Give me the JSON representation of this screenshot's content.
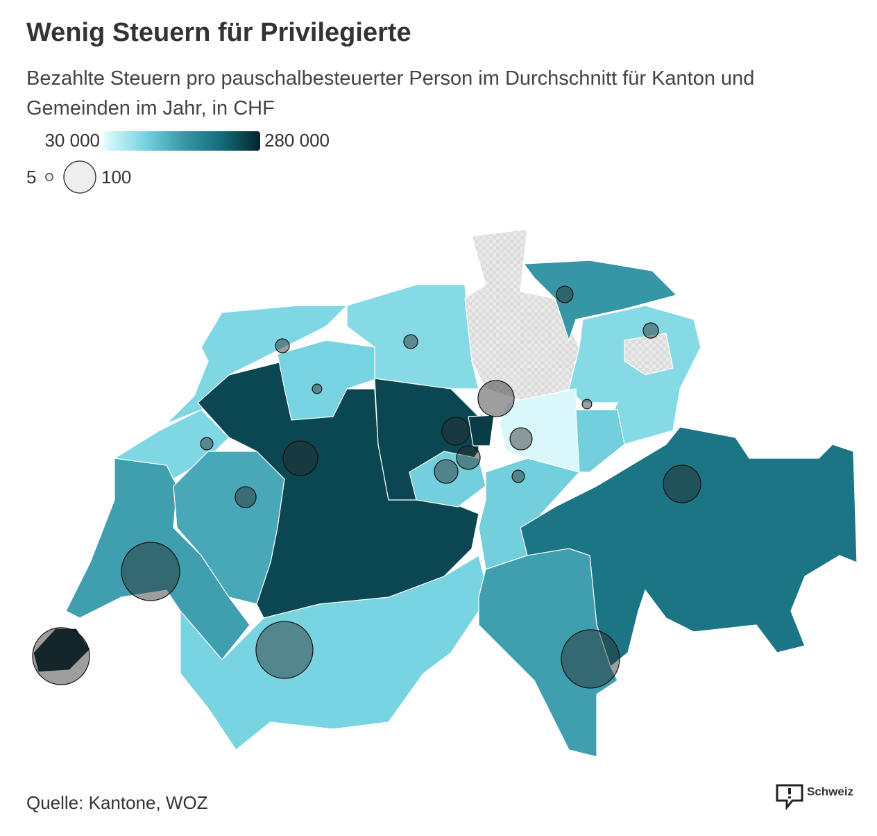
{
  "title": "Wenig Steuern für Privilegierte",
  "subtitle": "Bezahlte Steuern pro pauschalbesteuerter Person im Durchschnitt für Kanton und Gemeinden im Jahr, in CHF",
  "color_legend": {
    "min": {
      "value": 30000,
      "label": "30 000"
    },
    "max": {
      "value": 280000,
      "label": "280 000"
    },
    "colors": [
      "#e2fbfd",
      "#7ad6e2",
      "#3a9aaa",
      "#136c7a",
      "#04252d"
    ]
  },
  "size_legend": {
    "min": 5,
    "max": 100
  },
  "no_data_color": "#e6e6e6",
  "bubble_color": "rgba(40,40,40,0.45)",
  "region_values": [
    280000,
    150000,
    95000,
    90000,
    90000,
    140000,
    250000,
    95000,
    85000,
    null,
    160000,
    85000,
    null,
    250000,
    260000,
    35000,
    100000,
    100000,
    100000,
    205000,
    150000
  ],
  "bubble_counts": [
    27,
    23,
    19,
    19,
    9,
    128,
    9,
    76,
    48,
    15,
    118,
    55,
    55,
    15,
    138,
    43,
    333,
    318,
    333,
    318
  ],
  "source": "Quelle: Kantone, WOZ",
  "logo": "Schweiz"
}
